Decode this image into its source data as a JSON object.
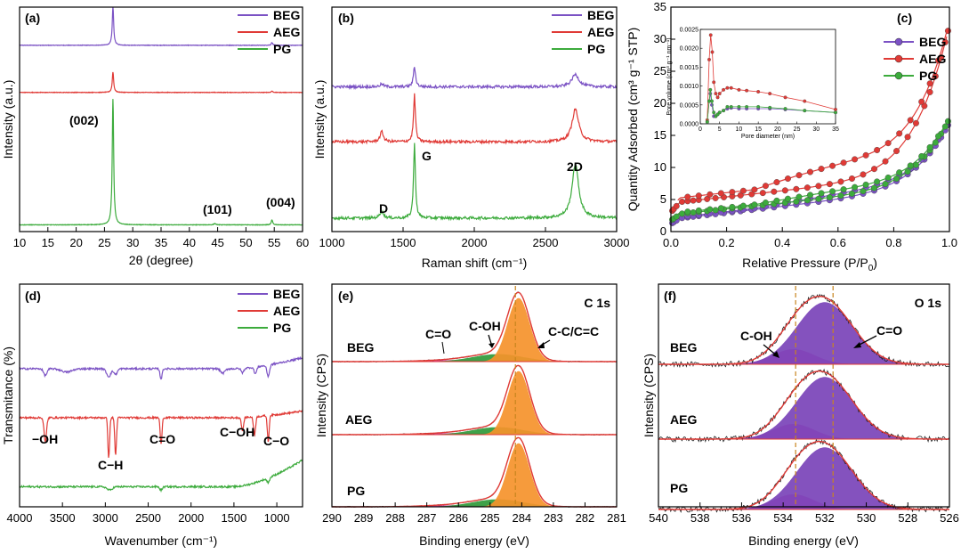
{
  "chart_data": [
    {
      "id": "a",
      "type": "line",
      "panel_label": "(a)",
      "xlabel": "2θ (degree)",
      "ylabel": "Intensity (a.u.)",
      "xlim": [
        10,
        60
      ],
      "xticks": [
        10,
        15,
        20,
        25,
        30,
        35,
        40,
        45,
        50,
        55,
        60
      ],
      "legend": [
        "BEG",
        "AEG",
        "PG"
      ],
      "series": [
        {
          "name": "BEG",
          "color": "#7b52c4",
          "baseline": 0.83,
          "peaks": [
            [
              26.5,
              0.17,
              0.15
            ],
            [
              54.6,
              0.012,
              0.15
            ]
          ]
        },
        {
          "name": "AEG",
          "color": "#e03a36",
          "baseline": 0.62,
          "peaks": [
            [
              26.5,
              0.09,
              0.15
            ],
            [
              54.6,
              0.006,
              0.15
            ]
          ]
        },
        {
          "name": "PG",
          "color": "#3cab3c",
          "baseline": 0.03,
          "peaks": [
            [
              26.5,
              0.56,
              0.15
            ],
            [
              44.5,
              0.006,
              0.2
            ],
            [
              54.6,
              0.022,
              0.15
            ]
          ]
        }
      ],
      "annotations": [
        "(002)",
        "(101)",
        "(004)"
      ]
    },
    {
      "id": "b",
      "type": "line",
      "panel_label": "(b)",
      "xlabel": "Raman shift (cm⁻¹)",
      "ylabel": "Intensity (a.u.)",
      "xlim": [
        1000,
        3000
      ],
      "xticks": [
        1000,
        1500,
        2000,
        2500,
        3000
      ],
      "legend": [
        "BEG",
        "AEG",
        "PG"
      ],
      "series": [
        {
          "name": "BEG",
          "color": "#7b52c4",
          "baseline": 0.645,
          "peaks": [
            [
              1350,
              0.012,
              15
            ],
            [
              1580,
              0.09,
              9
            ],
            [
              2710,
              0.055,
              30
            ]
          ]
        },
        {
          "name": "AEG",
          "color": "#e03a36",
          "baseline": 0.4,
          "peaks": [
            [
              1350,
              0.045,
              14
            ],
            [
              1580,
              0.21,
              8
            ],
            [
              2710,
              0.145,
              28
            ]
          ]
        },
        {
          "name": "PG",
          "color": "#3cab3c",
          "baseline": 0.06,
          "peaks": [
            [
              1350,
              0.03,
              15
            ],
            [
              1580,
              0.33,
              8
            ],
            [
              2710,
              0.24,
              28
            ]
          ]
        }
      ],
      "annotations": [
        "D",
        "G",
        "2D"
      ]
    },
    {
      "id": "c",
      "type": "line",
      "panel_label": "(c)",
      "xlabel": "Relative Pressure (P/P",
      "xlabel_sub": "0",
      "xlabel_end": ")",
      "ylabel": "Quantity Adsorbed (cm³ g⁻¹ STP)",
      "xlim": [
        0,
        1
      ],
      "ylim": [
        0,
        35
      ],
      "xticks": [
        "0.0",
        "0.2",
        "0.4",
        "0.6",
        "0.8",
        "1.0"
      ],
      "yticks": [
        0,
        5,
        10,
        15,
        20,
        25,
        30,
        35
      ],
      "legend": [
        "BEG",
        "AEG",
        "PG"
      ],
      "series": [
        {
          "name": "BEG",
          "color": "#7b52c4",
          "start": 1.2,
          "a": 1.0,
          "b": 7.0,
          "c": 0.7,
          "endAds": 16.6,
          "desOffset": 0.6
        },
        {
          "name": "AEG",
          "color": "#e03a36",
          "start": 3.0,
          "a": 2.8,
          "b": 9.0,
          "c": 2.2,
          "endAds": 31.3,
          "desOffset": 2.2
        },
        {
          "name": "PG",
          "color": "#3cab3c",
          "start": 1.7,
          "a": 1.4,
          "b": 7.0,
          "c": 0.8,
          "endAds": 17.2,
          "desOffset": 0.7
        }
      ],
      "inset": {
        "xlabel": "Pore diameter (nm)",
        "ylabel": "Pore volume (cm³ g⁻¹ nm⁻¹)",
        "xlim": [
          0,
          35
        ],
        "ylim": [
          0,
          0.0025
        ],
        "xticks": [
          0,
          5,
          10,
          15,
          20,
          25,
          30,
          35
        ],
        "yticks": [
          "0.0000",
          "0.0005",
          "0.0010",
          "0.0015",
          "0.0020",
          "0.0025"
        ],
        "series": [
          {
            "name": "BEG",
            "color": "#7b52c4",
            "points": [
              [
                1.8,
                5e-05
              ],
              [
                2.3,
                0.0006
              ],
              [
                2.6,
                0.0008
              ],
              [
                3.0,
                0.0005
              ],
              [
                3.5,
                0.0002
              ],
              [
                4,
                0.0002
              ],
              [
                4.5,
                0.00025
              ],
              [
                5,
                0.0003
              ],
              [
                6,
                0.00035
              ],
              [
                7,
                0.0004
              ],
              [
                8,
                0.00042
              ],
              [
                10,
                0.0004
              ],
              [
                12,
                0.0004
              ],
              [
                15,
                0.0004
              ],
              [
                18,
                0.0004
              ],
              [
                22,
                0.00038
              ],
              [
                27,
                0.00035
              ],
              [
                35,
                0.0003
              ]
            ]
          },
          {
            "name": "AEG",
            "color": "#e03a36",
            "points": [
              [
                1.8,
                0.0001
              ],
              [
                2.3,
                0.0017
              ],
              [
                2.7,
                0.00235
              ],
              [
                3.1,
                0.0019
              ],
              [
                3.5,
                0.0011
              ],
              [
                4,
                0.0008
              ],
              [
                4.5,
                0.0007
              ],
              [
                5,
                0.0008
              ],
              [
                6,
                0.0009
              ],
              [
                7,
                0.00095
              ],
              [
                8,
                0.00095
              ],
              [
                10,
                0.0009
              ],
              [
                12,
                0.00088
              ],
              [
                15,
                0.00085
              ],
              [
                18,
                0.0008
              ],
              [
                22,
                0.0007
              ],
              [
                27,
                0.0006
              ],
              [
                35,
                0.00038
              ]
            ]
          },
          {
            "name": "PG",
            "color": "#3cab3c",
            "points": [
              [
                1.8,
                5e-05
              ],
              [
                2.3,
                0.0006
              ],
              [
                2.6,
                0.0009
              ],
              [
                3.0,
                0.0006
              ],
              [
                3.5,
                0.0003
              ],
              [
                4,
                0.0002
              ],
              [
                4.5,
                0.00025
              ],
              [
                5,
                0.0003
              ],
              [
                6,
                0.00035
              ],
              [
                7,
                0.00045
              ],
              [
                8,
                0.00045
              ],
              [
                10,
                0.00045
              ],
              [
                12,
                0.00045
              ],
              [
                15,
                0.00045
              ],
              [
                18,
                0.00043
              ],
              [
                22,
                0.0004
              ],
              [
                27,
                0.00035
              ],
              [
                35,
                0.0003
              ]
            ]
          }
        ]
      }
    },
    {
      "id": "d",
      "type": "line",
      "panel_label": "(d)",
      "xlabel": "Wavenumber (cm⁻¹)",
      "ylabel": "Transmitance (%)",
      "xlim": [
        4000,
        700
      ],
      "xticks": [
        4000,
        3500,
        3000,
        2500,
        2000,
        1500,
        1000
      ],
      "legend": [
        "BEG",
        "AEG",
        "PG"
      ],
      "series": [
        {
          "name": "BEG",
          "color": "#7b52c4",
          "baseline": 0.62,
          "dips": [
            [
              3700,
              0.03,
              20
            ],
            [
              3450,
              0.015,
              60
            ],
            [
              2960,
              0.035,
              25
            ],
            [
              2880,
              0.025,
              20
            ],
            [
              2350,
              0.045,
              12
            ],
            [
              1630,
              0.02,
              25
            ],
            [
              1400,
              0.02,
              15
            ],
            [
              1250,
              0.03,
              15
            ],
            [
              1100,
              0.05,
              15
            ]
          ],
          "tail": 0.05
        },
        {
          "name": "AEG",
          "color": "#e03a36",
          "baseline": 0.4,
          "dips": [
            [
              3700,
              0.11,
              14
            ],
            [
              2960,
              0.18,
              10
            ],
            [
              2880,
              0.17,
              10
            ],
            [
              2350,
              0.12,
              10
            ],
            [
              1400,
              0.06,
              12
            ],
            [
              1260,
              0.08,
              12
            ],
            [
              1100,
              0.12,
              10
            ]
          ],
          "tail": 0.03
        },
        {
          "name": "PG",
          "color": "#3cab3c",
          "baseline": 0.09,
          "dips": [
            [
              2950,
              0.015,
              30
            ],
            [
              2350,
              0.015,
              15
            ],
            [
              1100,
              0.02,
              15
            ]
          ],
          "tail": 0.12
        }
      ],
      "annotations": [
        "−OH",
        "C−H",
        "C=O",
        "C−OH",
        "C−O"
      ]
    },
    {
      "id": "e",
      "type": "area",
      "panel_label": "(e)",
      "title": "C 1s",
      "xlabel": "Binding energy (eV)",
      "ylabel": "Intensity (CPS)",
      "xlim": [
        290,
        281
      ],
      "xticks": [
        290,
        289,
        288,
        287,
        286,
        285,
        284,
        283,
        282,
        281
      ],
      "rows": [
        "BEG",
        "AEG",
        "PG"
      ],
      "components": [
        {
          "name": "C-C/C=C",
          "center": 284.1,
          "height": 0.85,
          "left": 0.25,
          "right": 0.35,
          "color": "#f5922b"
        },
        {
          "name": "C-OH",
          "center": 284.75,
          "height": 0.1,
          "left": 0.8,
          "right": 0.8,
          "color": "#2f9a3a"
        },
        {
          "name": "C=O",
          "center": 286.1,
          "height": 0.02,
          "left": 1.0,
          "right": 1.0,
          "color": "#d63aa8"
        }
      ],
      "dashed_line": 284.2,
      "annotations": [
        "C=O",
        "C-OH",
        "C-C/C=C"
      ]
    },
    {
      "id": "f",
      "type": "area",
      "panel_label": "(f)",
      "title": "O 1s",
      "xlabel": "Binding energy (eV)",
      "ylabel": "Intensity (CPS)",
      "xlim": [
        540,
        526
      ],
      "xticks": [
        540,
        538,
        536,
        534,
        532,
        530,
        528,
        526
      ],
      "rows": [
        "BEG",
        "AEG",
        "PG"
      ],
      "components": [
        {
          "name": "C=O",
          "center": 532.0,
          "height": 0.82,
          "left": 1.25,
          "right": 1.35,
          "color": "#7a43b8"
        },
        {
          "name": "C-OH",
          "center": 533.5,
          "height": 0.2,
          "left": 1.0,
          "right": 1.0,
          "color": "#e24fb1"
        }
      ],
      "dashed_lines": [
        533.4,
        531.6
      ],
      "annotations": [
        "C-OH",
        "C=O"
      ]
    }
  ]
}
